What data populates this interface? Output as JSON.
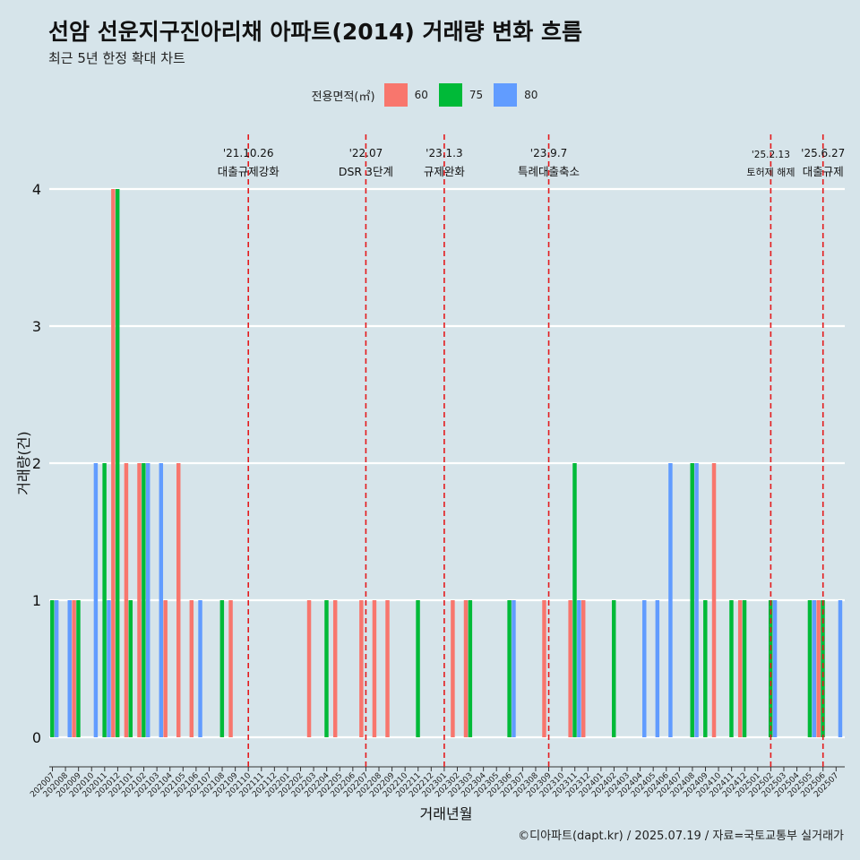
{
  "title": "선암 선운지구진아리채 아파트(2014) 거래량 변화 흐름",
  "subtitle": "최근 5년 한정 확대 차트",
  "caption": "©디아파트(dapt.kr) / 2025.07.19 / 자료=국토교통부 실거래가",
  "legend": {
    "title": "전용면적(㎡)",
    "items": [
      {
        "label": "60",
        "color": "#f8766d"
      },
      {
        "label": "75",
        "color": "#00ba38"
      },
      {
        "label": "80",
        "color": "#619cff"
      }
    ]
  },
  "chart_data": {
    "type": "bar",
    "xlabel": "거래년월",
    "ylabel": "거래량(건)",
    "ylim": [
      0,
      4
    ],
    "yticks": [
      0,
      1,
      2,
      3,
      4
    ],
    "grid": true,
    "legend_position": "top",
    "categories": [
      "202007",
      "202008",
      "202009",
      "202010",
      "202011",
      "202012",
      "202101",
      "202102",
      "202103",
      "202104",
      "202105",
      "202106",
      "202107",
      "202108",
      "202109",
      "202110",
      "202111",
      "202112",
      "202201",
      "202202",
      "202203",
      "202204",
      "202205",
      "202206",
      "202207",
      "202208",
      "202209",
      "202210",
      "202211",
      "202212",
      "202301",
      "202302",
      "202303",
      "202304",
      "202305",
      "202306",
      "202307",
      "202308",
      "202309",
      "202310",
      "202311",
      "202312",
      "202401",
      "202402",
      "202403",
      "202404",
      "202405",
      "202406",
      "202407",
      "202408",
      "202409",
      "202410",
      "202411",
      "202412",
      "202501",
      "202502",
      "202503",
      "202504",
      "202505",
      "202506",
      "202507"
    ],
    "series": [
      {
        "name": "60",
        "color": "#f8766d",
        "values": [
          0,
          0,
          1,
          0,
          0,
          4,
          2,
          2,
          0,
          1,
          2,
          1,
          0,
          0,
          1,
          0,
          0,
          0,
          0,
          0,
          1,
          0,
          1,
          0,
          1,
          1,
          1,
          0,
          0,
          0,
          0,
          1,
          1,
          0,
          0,
          0,
          0,
          0,
          1,
          0,
          1,
          1,
          0,
          0,
          0,
          0,
          0,
          0,
          0,
          0,
          0,
          2,
          0,
          1,
          0,
          0,
          0,
          0,
          0,
          1,
          0
        ]
      },
      {
        "name": "75",
        "color": "#00ba38",
        "values": [
          1,
          0,
          1,
          0,
          2,
          4,
          1,
          2,
          0,
          0,
          0,
          0,
          0,
          1,
          0,
          0,
          0,
          0,
          0,
          0,
          0,
          1,
          0,
          0,
          0,
          0,
          0,
          0,
          1,
          0,
          0,
          0,
          1,
          0,
          0,
          1,
          0,
          0,
          0,
          0,
          2,
          0,
          0,
          1,
          0,
          0,
          0,
          0,
          0,
          2,
          1,
          0,
          1,
          1,
          0,
          1,
          0,
          0,
          1,
          1,
          0
        ]
      },
      {
        "name": "80",
        "color": "#619cff",
        "values": [
          1,
          1,
          0,
          2,
          1,
          0,
          0,
          2,
          2,
          0,
          0,
          1,
          0,
          0,
          0,
          0,
          0,
          0,
          0,
          0,
          0,
          0,
          0,
          0,
          0,
          0,
          0,
          0,
          0,
          0,
          0,
          0,
          0,
          0,
          0,
          1,
          0,
          0,
          0,
          0,
          1,
          0,
          0,
          0,
          0,
          1,
          1,
          2,
          0,
          2,
          0,
          0,
          0,
          0,
          0,
          1,
          0,
          0,
          1,
          0,
          1
        ]
      }
    ],
    "annotations": [
      {
        "category": "202110",
        "date": "'21.10.26",
        "text": "대출규제강화"
      },
      {
        "category": "202207",
        "date": "'22.07",
        "text": "DSR 3단계"
      },
      {
        "category": "202301",
        "date": "'23.1.3",
        "text": "규제완화"
      },
      {
        "category": "202309",
        "date": "'23.9.7",
        "text": "특례대출축소"
      },
      {
        "category": "202502",
        "date": "'25.2.13",
        "text": "토허제 해제"
      },
      {
        "category": "202506",
        "date": "'25.6.27",
        "text": "대출규제"
      }
    ]
  }
}
